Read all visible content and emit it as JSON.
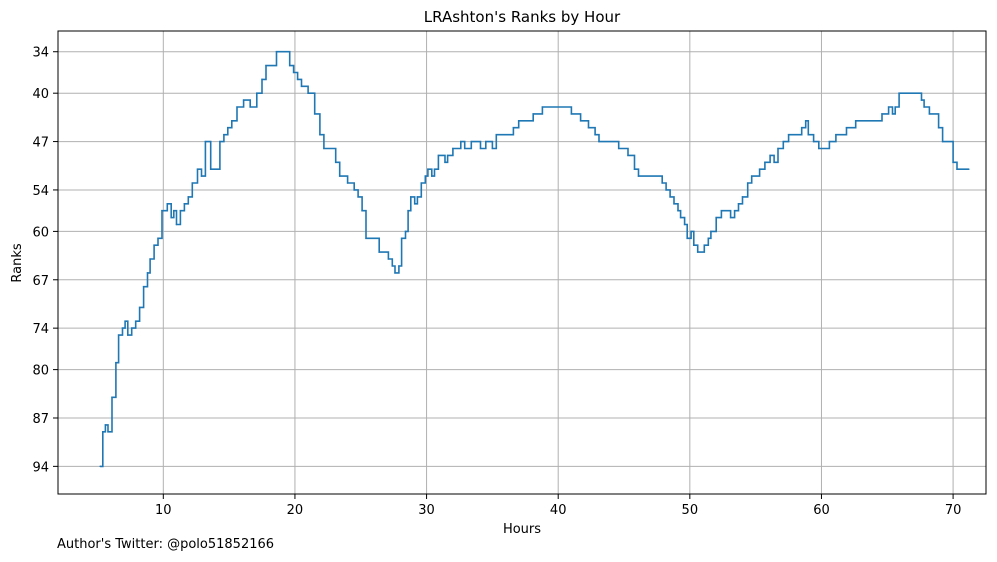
{
  "chart_data": {
    "type": "line",
    "title": "LRAshton's Ranks by Hour",
    "xlabel": "Hours",
    "ylabel": "Ranks",
    "x_ticks": [
      10,
      20,
      30,
      40,
      50,
      60,
      70
    ],
    "y_ticks": [
      34,
      40,
      47,
      54,
      60,
      67,
      74,
      80,
      87,
      94
    ],
    "xlim": [
      2.0,
      72.5
    ],
    "ylim_inverted": [
      98,
      31
    ],
    "grid": true,
    "series": [
      {
        "color": "#1f77b4",
        "step": true,
        "points": [
          [
            5.2,
            94
          ],
          [
            5.4,
            89
          ],
          [
            5.6,
            88
          ],
          [
            5.8,
            89
          ],
          [
            6.1,
            84
          ],
          [
            6.4,
            79
          ],
          [
            6.6,
            75
          ],
          [
            6.9,
            74
          ],
          [
            7.1,
            73
          ],
          [
            7.3,
            75
          ],
          [
            7.6,
            74
          ],
          [
            7.9,
            73
          ],
          [
            8.2,
            71
          ],
          [
            8.5,
            68
          ],
          [
            8.8,
            66
          ],
          [
            9.0,
            64
          ],
          [
            9.3,
            62
          ],
          [
            9.6,
            61
          ],
          [
            9.9,
            57
          ],
          [
            10.3,
            56
          ],
          [
            10.6,
            58
          ],
          [
            10.8,
            57
          ],
          [
            11.0,
            59
          ],
          [
            11.3,
            57
          ],
          [
            11.6,
            56
          ],
          [
            11.9,
            55
          ],
          [
            12.2,
            53
          ],
          [
            12.6,
            51
          ],
          [
            12.9,
            52
          ],
          [
            13.2,
            47
          ],
          [
            13.6,
            51
          ],
          [
            14.1,
            51
          ],
          [
            14.3,
            47
          ],
          [
            14.6,
            46
          ],
          [
            14.9,
            45
          ],
          [
            15.2,
            44
          ],
          [
            15.6,
            42
          ],
          [
            16.1,
            41
          ],
          [
            16.6,
            42
          ],
          [
            17.1,
            40
          ],
          [
            17.5,
            38
          ],
          [
            17.8,
            36
          ],
          [
            18.6,
            34
          ],
          [
            19.6,
            36
          ],
          [
            19.9,
            37
          ],
          [
            20.2,
            38
          ],
          [
            20.5,
            39
          ],
          [
            21.0,
            40
          ],
          [
            21.5,
            43
          ],
          [
            21.9,
            46
          ],
          [
            22.2,
            48
          ],
          [
            23.1,
            50
          ],
          [
            23.4,
            52
          ],
          [
            24.0,
            53
          ],
          [
            24.5,
            54
          ],
          [
            24.8,
            55
          ],
          [
            25.1,
            57
          ],
          [
            25.4,
            61
          ],
          [
            26.4,
            63
          ],
          [
            27.1,
            64
          ],
          [
            27.4,
            65
          ],
          [
            27.6,
            66
          ],
          [
            27.9,
            65
          ],
          [
            28.1,
            61
          ],
          [
            28.4,
            60
          ],
          [
            28.6,
            57
          ],
          [
            28.8,
            55
          ],
          [
            29.1,
            56
          ],
          [
            29.3,
            55
          ],
          [
            29.6,
            53
          ],
          [
            29.9,
            52
          ],
          [
            30.1,
            51
          ],
          [
            30.4,
            52
          ],
          [
            30.6,
            51
          ],
          [
            30.9,
            49
          ],
          [
            31.4,
            50
          ],
          [
            31.6,
            49
          ],
          [
            32.0,
            48
          ],
          [
            32.6,
            47
          ],
          [
            32.9,
            48
          ],
          [
            33.4,
            47
          ],
          [
            34.1,
            48
          ],
          [
            34.5,
            47
          ],
          [
            35.0,
            48
          ],
          [
            35.3,
            46
          ],
          [
            36.6,
            45
          ],
          [
            37.0,
            44
          ],
          [
            38.1,
            43
          ],
          [
            38.8,
            42
          ],
          [
            41.0,
            43
          ],
          [
            41.7,
            44
          ],
          [
            42.3,
            45
          ],
          [
            42.8,
            46
          ],
          [
            43.1,
            47
          ],
          [
            44.6,
            48
          ],
          [
            45.3,
            49
          ],
          [
            45.8,
            51
          ],
          [
            46.1,
            52
          ],
          [
            47.9,
            53
          ],
          [
            48.2,
            54
          ],
          [
            48.5,
            55
          ],
          [
            48.8,
            56
          ],
          [
            49.1,
            57
          ],
          [
            49.3,
            58
          ],
          [
            49.6,
            59
          ],
          [
            49.8,
            61
          ],
          [
            50.1,
            60
          ],
          [
            50.3,
            62
          ],
          [
            50.6,
            63
          ],
          [
            51.1,
            62
          ],
          [
            51.4,
            61
          ],
          [
            51.6,
            60
          ],
          [
            52.0,
            58
          ],
          [
            52.4,
            57
          ],
          [
            53.1,
            58
          ],
          [
            53.4,
            57
          ],
          [
            53.7,
            56
          ],
          [
            54.0,
            55
          ],
          [
            54.4,
            53
          ],
          [
            54.7,
            52
          ],
          [
            55.3,
            51
          ],
          [
            55.7,
            50
          ],
          [
            56.1,
            49
          ],
          [
            56.4,
            50
          ],
          [
            56.7,
            48
          ],
          [
            57.1,
            47
          ],
          [
            57.5,
            46
          ],
          [
            58.5,
            45
          ],
          [
            58.8,
            44
          ],
          [
            59.0,
            46
          ],
          [
            59.4,
            47
          ],
          [
            59.8,
            48
          ],
          [
            60.6,
            47
          ],
          [
            61.1,
            46
          ],
          [
            61.9,
            45
          ],
          [
            62.6,
            44
          ],
          [
            64.6,
            43
          ],
          [
            65.1,
            42
          ],
          [
            65.4,
            43
          ],
          [
            65.6,
            42
          ],
          [
            65.9,
            40
          ],
          [
            67.6,
            41
          ],
          [
            67.8,
            42
          ],
          [
            68.2,
            43
          ],
          [
            68.9,
            45
          ],
          [
            69.2,
            47
          ],
          [
            70.0,
            50
          ],
          [
            70.3,
            51
          ],
          [
            71.2,
            51
          ]
        ]
      }
    ]
  },
  "footer": {
    "author": "Author's Twitter: @polo51852166"
  }
}
